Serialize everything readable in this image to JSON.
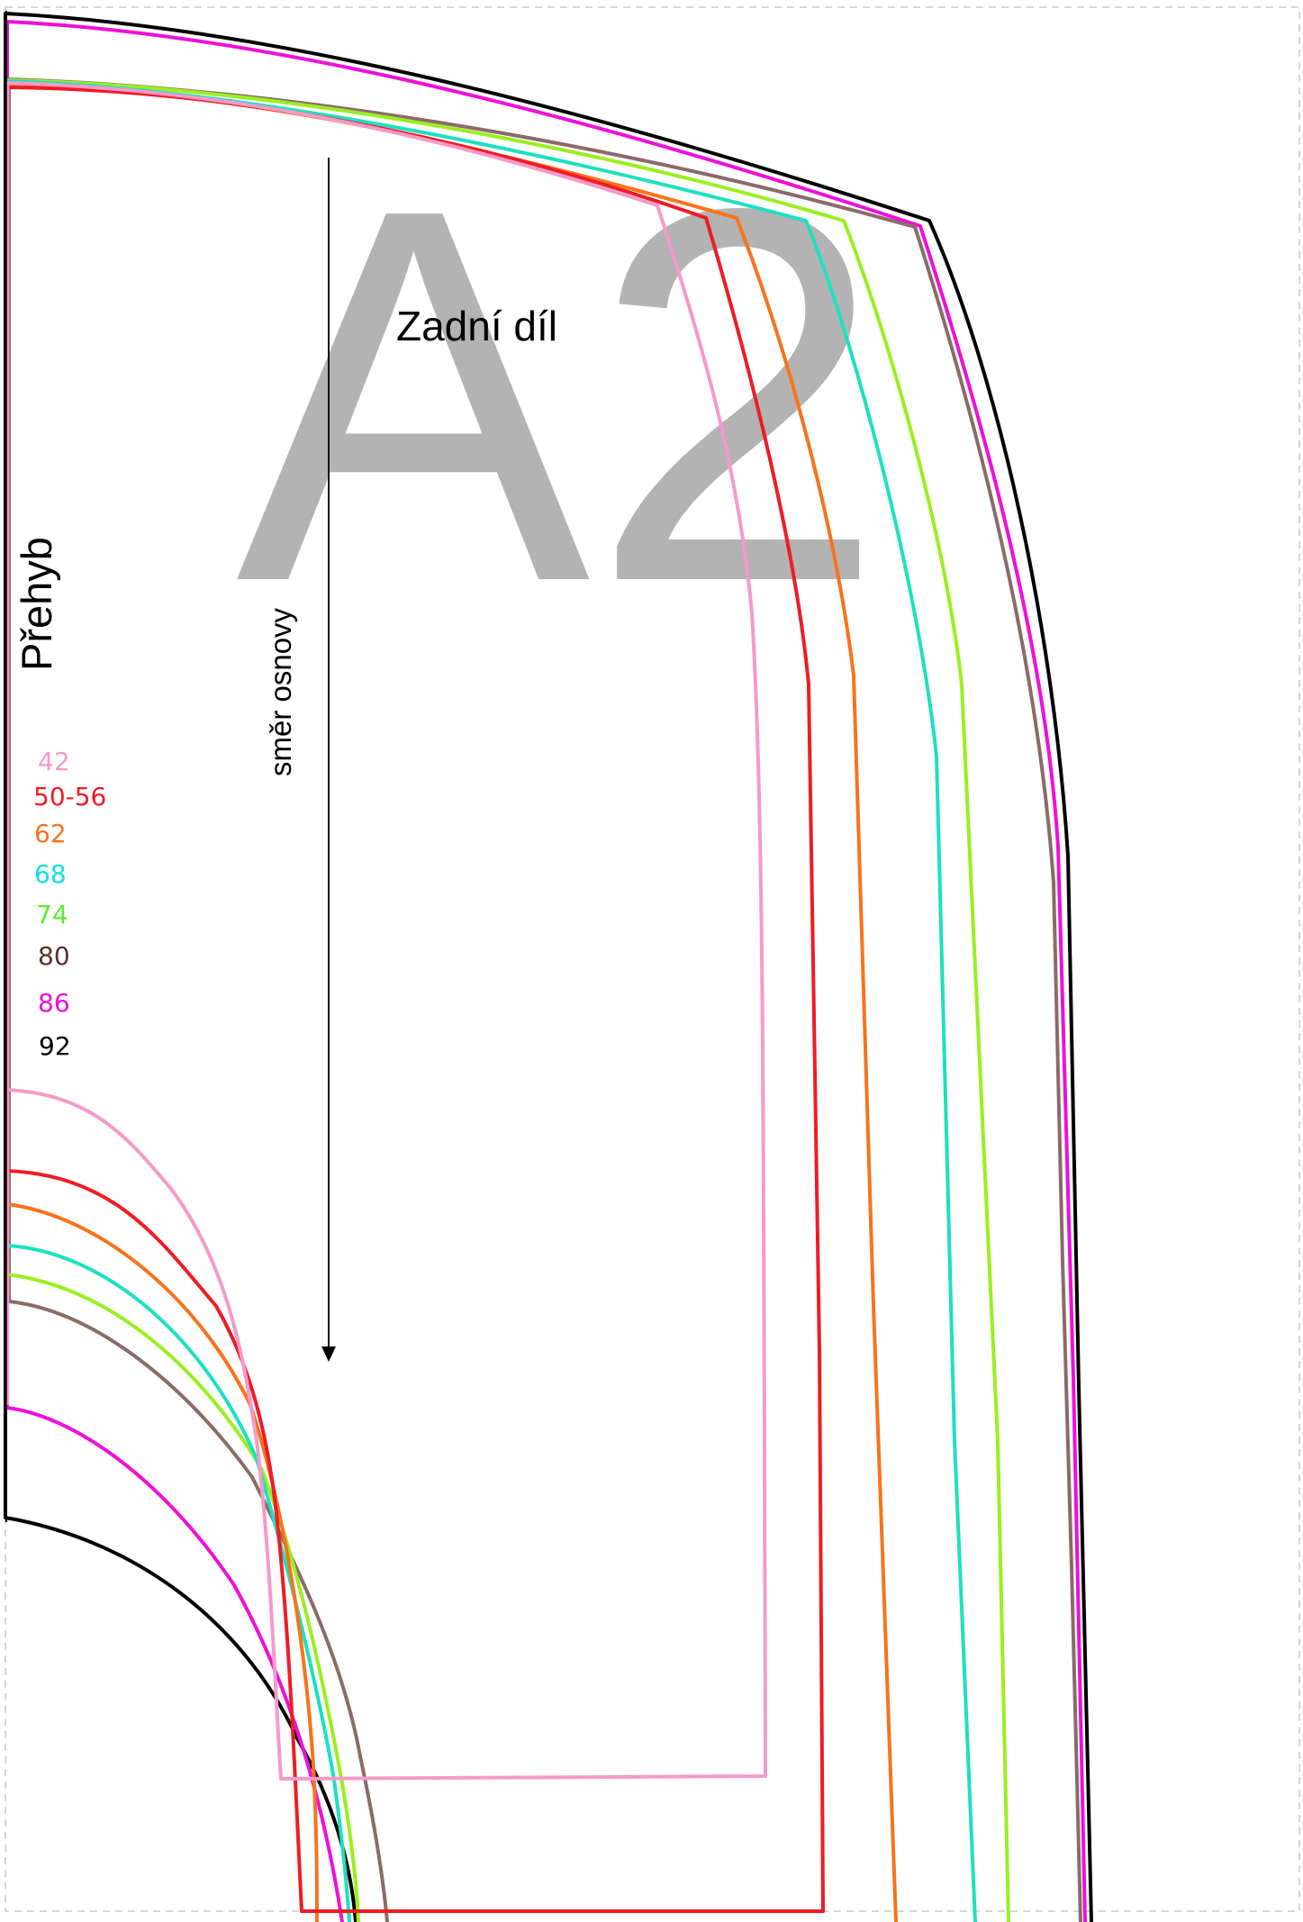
{
  "page_label": "A2",
  "piece_name": "Zadní díl",
  "fold_label": "Přehyb",
  "grain_label": "směr osnovy",
  "sizes": [
    {
      "label": "42",
      "color": "#f59ac8"
    },
    {
      "label": "50-56",
      "color": "#ee1c25"
    },
    {
      "label": "62",
      "color": "#f7731c"
    },
    {
      "label": "68",
      "color": "#13e2e2"
    },
    {
      "label": "74",
      "color": "#55ee33"
    },
    {
      "label": "80",
      "color": "#5a3030"
    },
    {
      "label": "86",
      "color": "#ee10d8"
    },
    {
      "label": "92",
      "color": "#000000"
    }
  ],
  "outline_colors": {
    "s42": "#f59ac8",
    "s50": "#ee1c25",
    "s62": "#f7731c",
    "s68": "#1de0c0",
    "s74": "#9aef20",
    "s80": "#8b6a6a",
    "s86": "#ee10d8",
    "s92": "#000000"
  }
}
